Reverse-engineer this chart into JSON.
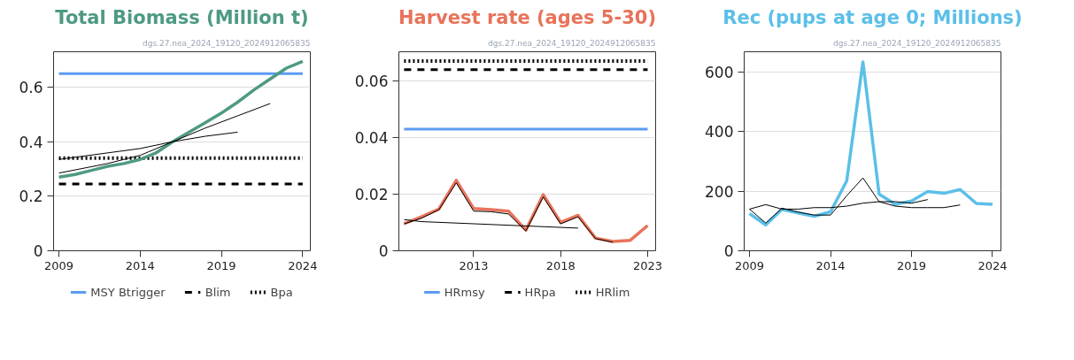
{
  "chart_data": [
    {
      "type": "line",
      "title": "Total Biomass (Million t)",
      "annotations": [
        "dgs.27.nea_2024_19120_2024912065835"
      ],
      "x": [
        2009,
        2010,
        2011,
        2012,
        2013,
        2014,
        2015,
        2016,
        2017,
        2018,
        2019,
        2020,
        2021,
        2022,
        2023,
        2024
      ],
      "series": [
        {
          "color": "#4e9a84",
          "values": [
            0.27,
            0.28,
            0.295,
            0.31,
            0.32,
            0.335,
            0.36,
            0.4,
            0.435,
            0.47,
            0.505,
            0.545,
            0.59,
            0.63,
            0.67,
            0.695
          ]
        },
        {
          "color": "#000000",
          "x": [
            2009,
            2014,
            2016,
            2018,
            2020
          ],
          "values": [
            0.335,
            0.375,
            0.4,
            0.42,
            0.435
          ]
        },
        {
          "color": "#000000",
          "x": [
            2009,
            2012,
            2014,
            2016,
            2018,
            2020,
            2022
          ],
          "values": [
            0.285,
            0.32,
            0.35,
            0.4,
            0.45,
            0.495,
            0.54
          ]
        }
      ],
      "xlim": [
        2008.67,
        2024.47
      ],
      "xticks": [
        2009,
        2014,
        2019,
        2024
      ],
      "ylim": [
        0,
        0.73
      ],
      "yticks": [
        0,
        0.2,
        0.4,
        0.6
      ],
      "grid": "y",
      "ref_lines": [
        {
          "axis": "y",
          "value": 0.65,
          "label": "MSY Btrigger",
          "color": "#5b9bf5",
          "line_style": "solid"
        },
        {
          "axis": "y",
          "value": 0.245,
          "label": "Blim",
          "color": "#000000",
          "line_style": "dashed"
        },
        {
          "axis": "y",
          "value": 0.34,
          "label": "Bpa",
          "color": "#000000",
          "line_style": "dotted"
        }
      ],
      "legend": "bottom"
    },
    {
      "type": "line",
      "title": "Harvest rate (ages 5-30)",
      "annotations": [
        "dgs.27.nea_2024_19120_2024912065835"
      ],
      "x": [
        2009,
        2010,
        2011,
        2012,
        2013,
        2014,
        2015,
        2016,
        2017,
        2018,
        2019,
        2020,
        2021,
        2022,
        2023
      ],
      "series": [
        {
          "color": "#e8735a",
          "values": [
            0.0096,
            0.012,
            0.0147,
            0.0249,
            0.0149,
            0.0145,
            0.014,
            0.0073,
            0.0198,
            0.01,
            0.0125,
            0.0045,
            0.0033,
            0.0037,
            0.0089
          ]
        },
        {
          "color": "#000000",
          "x": [
            2009,
            2010,
            2011,
            2012,
            2013,
            2014,
            2015,
            2016,
            2017,
            2018,
            2019,
            2020,
            2021
          ],
          "values": [
            0.0095,
            0.0115,
            0.0145,
            0.024,
            0.014,
            0.0138,
            0.013,
            0.007,
            0.019,
            0.0095,
            0.012,
            0.0043,
            0.003
          ]
        },
        {
          "color": "#000000",
          "x": [
            2009,
            2010,
            2019
          ],
          "values": [
            0.011,
            0.0103,
            0.008
          ]
        }
      ],
      "xlim": [
        2008.7,
        2023.46
      ],
      "xticks": [
        2013,
        2018,
        2023
      ],
      "ylim": [
        0,
        0.0703
      ],
      "yticks": [
        0,
        0.02,
        0.04,
        0.06
      ],
      "grid": "y",
      "ref_lines": [
        {
          "axis": "y",
          "value": 0.043,
          "label": "HRmsy",
          "color": "#5b9bf5",
          "line_style": "solid"
        },
        {
          "axis": "y",
          "value": 0.064,
          "label": "HRpa",
          "color": "#000000",
          "line_style": "dashed"
        },
        {
          "axis": "y",
          "value": 0.067,
          "label": "HRlim",
          "color": "#000000",
          "line_style": "dotted"
        }
      ],
      "legend": "bottom"
    },
    {
      "type": "line",
      "title": "Rec (pups at age 0; Millions)",
      "annotations": [
        "dgs.27.nea_2024_19120_2024912065835"
      ],
      "x": [
        2009,
        2010,
        2011,
        2012,
        2013,
        2014,
        2015,
        2016,
        2017,
        2018,
        2019,
        2020,
        2021,
        2022,
        2023,
        2024
      ],
      "series": [
        {
          "color": "#5bbfe8",
          "values": [
            125,
            87,
            139,
            127,
            116,
            131,
            235,
            635,
            190,
            156,
            167,
            199,
            193,
            206,
            159,
            156
          ]
        },
        {
          "color": "#000000",
          "x": [
            2009,
            2010,
            2011,
            2012,
            2013,
            2014,
            2015,
            2016,
            2017,
            2018,
            2019,
            2020,
            2021,
            2022
          ],
          "values": [
            140,
            93,
            143,
            130,
            120,
            120,
            185,
            245,
            165,
            150,
            145,
            145,
            145,
            154
          ]
        },
        {
          "color": "#000000",
          "x": [
            2009,
            2010,
            2011,
            2012,
            2013,
            2014,
            2015,
            2016,
            2017,
            2018,
            2019,
            2020
          ],
          "values": [
            140,
            155,
            140,
            140,
            145,
            145,
            150,
            160,
            165,
            165,
            160,
            172
          ]
        }
      ],
      "xlim": [
        2008.67,
        2024.52
      ],
      "xticks": [
        2009,
        2014,
        2019,
        2024
      ],
      "ylim": [
        0,
        669
      ],
      "yticks": [
        0,
        200,
        400,
        600
      ],
      "grid": "y"
    }
  ]
}
